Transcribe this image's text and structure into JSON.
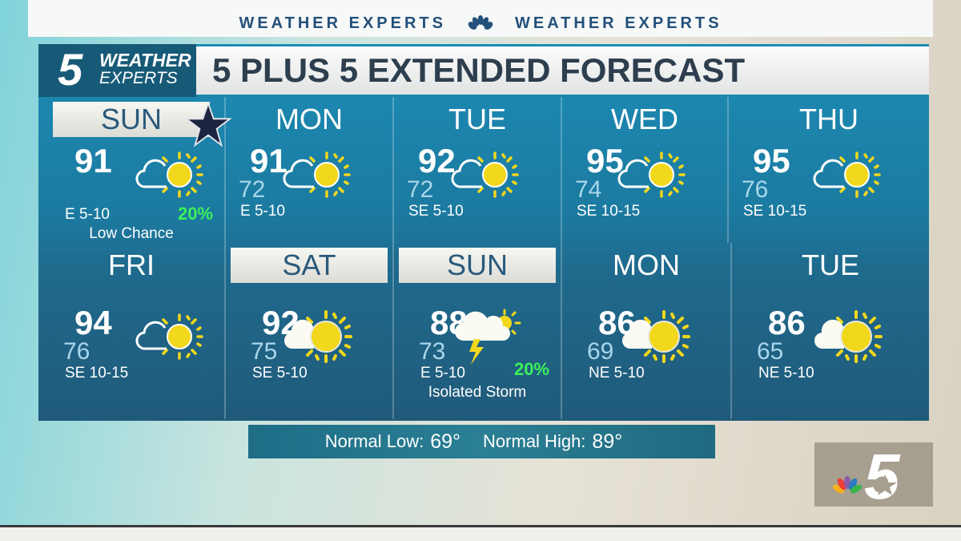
{
  "banner": {
    "left": "WEATHER EXPERTS",
    "right": "WEATHER EXPERTS"
  },
  "logo": {
    "number": "5",
    "line1": "WEATHER",
    "line2": "EXPERTS"
  },
  "title": "5 PLUS 5 EXTENDED FORECAST",
  "colors": {
    "pop": "#3cf05c",
    "low": "#a9d6ea",
    "sun": "#f2d81c"
  },
  "days": [
    {
      "day": "SUN",
      "hi": "91",
      "lo": "",
      "wind": "E 5-10",
      "pop": "20%",
      "note": "Low Chance",
      "icon": "partly-sunny-icon",
      "highlight": true,
      "star": true
    },
    {
      "day": "MON",
      "hi": "91",
      "lo": "72",
      "wind": "E 5-10",
      "pop": "",
      "note": "",
      "icon": "partly-sunny-icon",
      "highlight": false
    },
    {
      "day": "TUE",
      "hi": "92",
      "lo": "72",
      "wind": "SE 5-10",
      "pop": "",
      "note": "",
      "icon": "partly-sunny-icon",
      "highlight": false
    },
    {
      "day": "WED",
      "hi": "95",
      "lo": "74",
      "wind": "SE 10-15",
      "pop": "",
      "note": "",
      "icon": "partly-sunny-icon",
      "highlight": false
    },
    {
      "day": "THU",
      "hi": "95",
      "lo": "76",
      "wind": "SE 10-15",
      "pop": "",
      "note": "",
      "icon": "partly-sunny-icon",
      "highlight": false
    },
    {
      "day": "FRI",
      "hi": "94",
      "lo": "76",
      "wind": "SE 10-15",
      "pop": "",
      "note": "",
      "icon": "partly-sunny-icon",
      "highlight": false
    },
    {
      "day": "SAT",
      "hi": "92",
      "lo": "75",
      "wind": "SE 5-10",
      "pop": "",
      "note": "",
      "icon": "mostly-sunny-icon",
      "highlight": true
    },
    {
      "day": "SUN",
      "hi": "88",
      "lo": "73",
      "wind": "E 5-10",
      "pop": "20%",
      "note": "Isolated Storm",
      "icon": "thunderstorm-icon",
      "highlight": true
    },
    {
      "day": "MON",
      "hi": "86",
      "lo": "69",
      "wind": "NE 5-10",
      "pop": "",
      "note": "",
      "icon": "mostly-sunny-icon",
      "highlight": false
    },
    {
      "day": "TUE",
      "hi": "86",
      "lo": "65",
      "wind": "NE 5-10",
      "pop": "",
      "note": "",
      "icon": "mostly-sunny-icon",
      "highlight": false
    }
  ],
  "normals": {
    "low_label": "Normal Low:",
    "low": "69°",
    "high_label": "Normal High:",
    "high": "89°"
  },
  "station_logo": "5"
}
